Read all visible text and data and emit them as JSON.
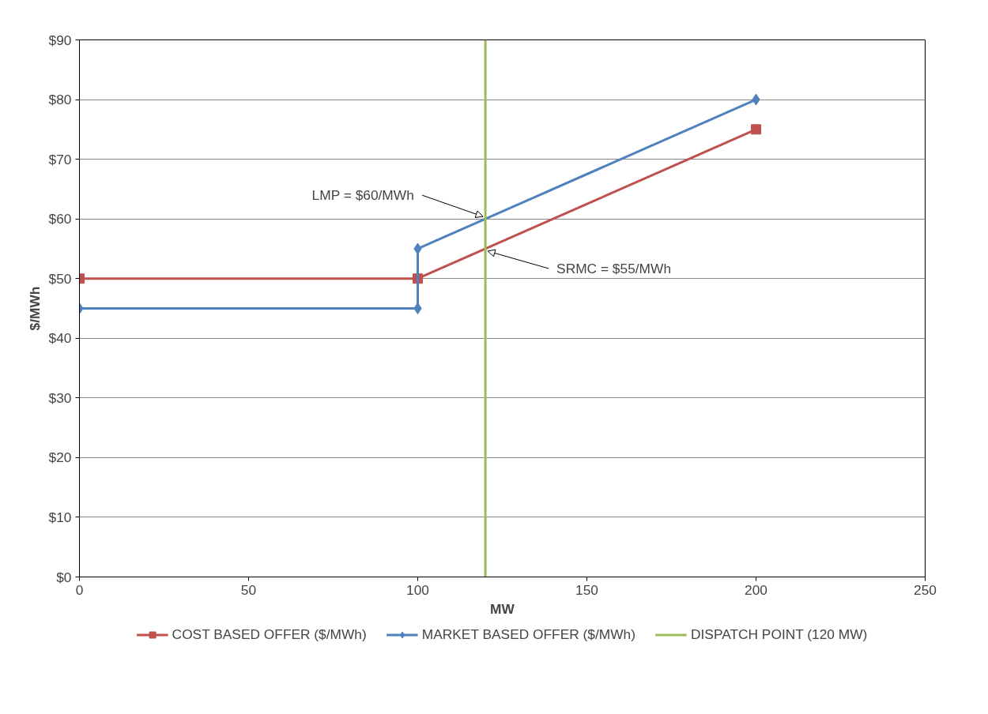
{
  "chart_data": {
    "type": "line",
    "xlabel": "MW",
    "ylabel": "$/MWh",
    "xlim": [
      0,
      250
    ],
    "xticks": [
      0,
      50,
      100,
      150,
      200,
      250
    ],
    "ylim": [
      0,
      90
    ],
    "yticks": [
      {
        "value": 0,
        "label": "$0"
      },
      {
        "value": 10,
        "label": "$10"
      },
      {
        "value": 20,
        "label": "$20"
      },
      {
        "value": 30,
        "label": "$30"
      },
      {
        "value": 40,
        "label": "$40"
      },
      {
        "value": 50,
        "label": "$50"
      },
      {
        "value": 60,
        "label": "$60"
      },
      {
        "value": 70,
        "label": "$70"
      },
      {
        "value": 80,
        "label": "$80"
      },
      {
        "value": 90,
        "label": "$90"
      }
    ],
    "grid": "y",
    "legend": "bottom",
    "line_style": "solid",
    "series": [
      {
        "name": "COST BASED OFFER ($/MWh)",
        "color": "#c0504d",
        "marker": "square",
        "x": [
          0,
          100,
          200
        ],
        "values": [
          50,
          50,
          75
        ]
      },
      {
        "name": "MARKET BASED OFFER ($/MWh)",
        "color": "#4f81bd",
        "marker": "diamond",
        "x": [
          0,
          100,
          100,
          200
        ],
        "values": [
          45,
          45,
          55,
          80
        ]
      },
      {
        "name": "DISPATCH POINT (120 MW)",
        "color": "#9bbb59",
        "marker": "none",
        "x": [
          120,
          120
        ],
        "values": [
          0,
          90
        ]
      }
    ],
    "annotations": [
      {
        "text": "LMP = $60/MWh",
        "x": 120,
        "y": 60
      },
      {
        "text": "SRMC = $55/MWh",
        "x": 120,
        "y": 55
      }
    ]
  }
}
